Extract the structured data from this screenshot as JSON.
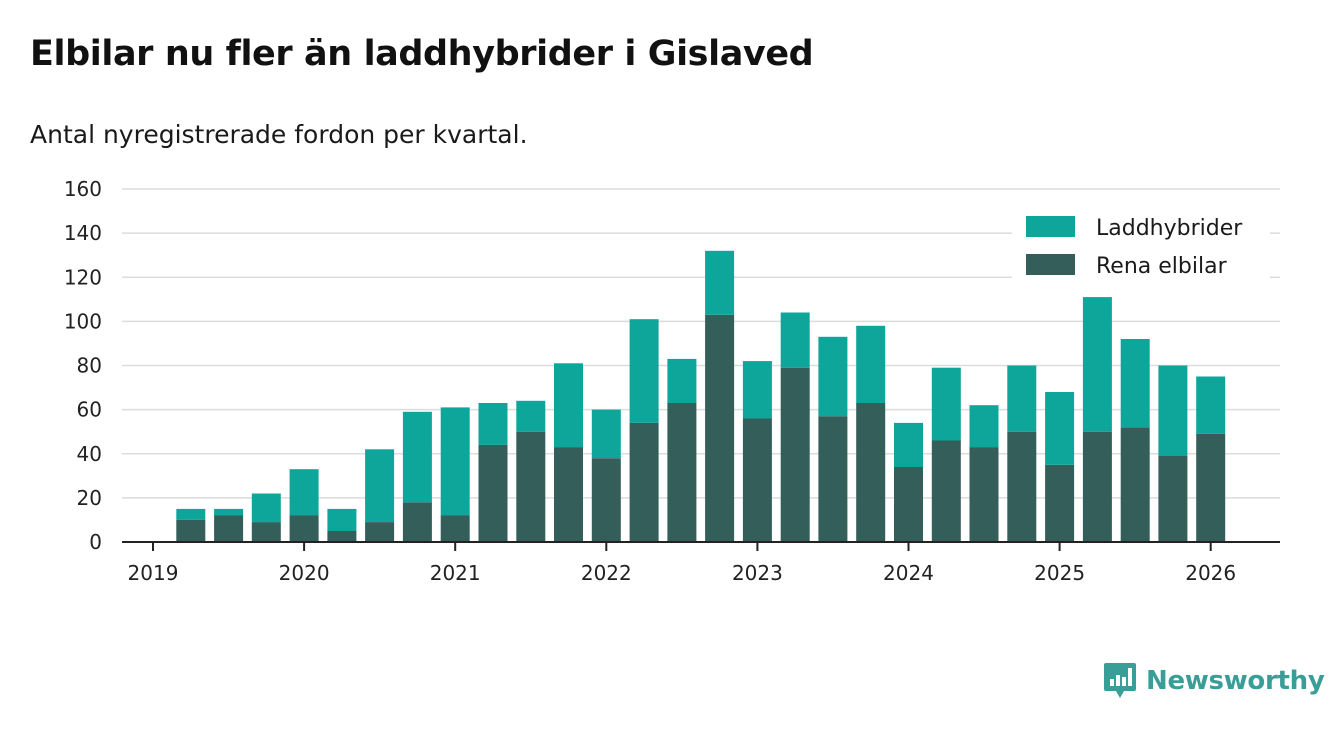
{
  "title": "Elbilar nu fler än laddhybrider i Gislaved",
  "subtitle": "Antal nyregistrerade fordon per kvartal.",
  "brand": {
    "name": "Newsworthy",
    "icon": "bar-chart-speech-bubble-icon",
    "color": "#3a9e98"
  },
  "chart_data": {
    "type": "bar",
    "stacked": true,
    "x_tick_labels": [
      "2019",
      "2020",
      "2021",
      "2022",
      "2023",
      "2024",
      "2025",
      "2026"
    ],
    "categories": [
      "2019 Q1",
      "2019 Q2",
      "2019 Q3",
      "2019 Q4",
      "2020 Q1",
      "2020 Q2",
      "2020 Q3",
      "2020 Q4",
      "2021 Q1",
      "2021 Q2",
      "2021 Q3",
      "2021 Q4",
      "2022 Q1",
      "2022 Q2",
      "2022 Q3",
      "2022 Q4",
      "2023 Q1",
      "2023 Q2",
      "2023 Q3",
      "2023 Q4",
      "2024 Q1",
      "2024 Q2",
      "2024 Q3",
      "2024 Q4",
      "2025 Q1",
      "2025 Q2",
      "2025 Q3",
      "2025 Q4"
    ],
    "series": [
      {
        "name": "Rena elbilar",
        "color": "#335e5a",
        "values": [
          10,
          12,
          9,
          12,
          5,
          9,
          18,
          12,
          44,
          50,
          43,
          38,
          54,
          63,
          103,
          56,
          79,
          57,
          63,
          34,
          46,
          43,
          50,
          35,
          50,
          52,
          39,
          49
        ]
      },
      {
        "name": "Laddhybrider",
        "color": "#0ea59b",
        "values": [
          5,
          3,
          13,
          21,
          10,
          33,
          41,
          49,
          19,
          14,
          38,
          22,
          47,
          20,
          29,
          26,
          25,
          36,
          35,
          20,
          33,
          19,
          30,
          33,
          61,
          40,
          41,
          26
        ]
      }
    ],
    "ylim": [
      0,
      160
    ],
    "y_ticks": [
      0,
      20,
      40,
      60,
      80,
      100,
      120,
      140,
      160
    ],
    "grid": true,
    "legend": {
      "position": "top-right",
      "order": [
        "Laddhybrider",
        "Rena elbilar"
      ]
    }
  }
}
